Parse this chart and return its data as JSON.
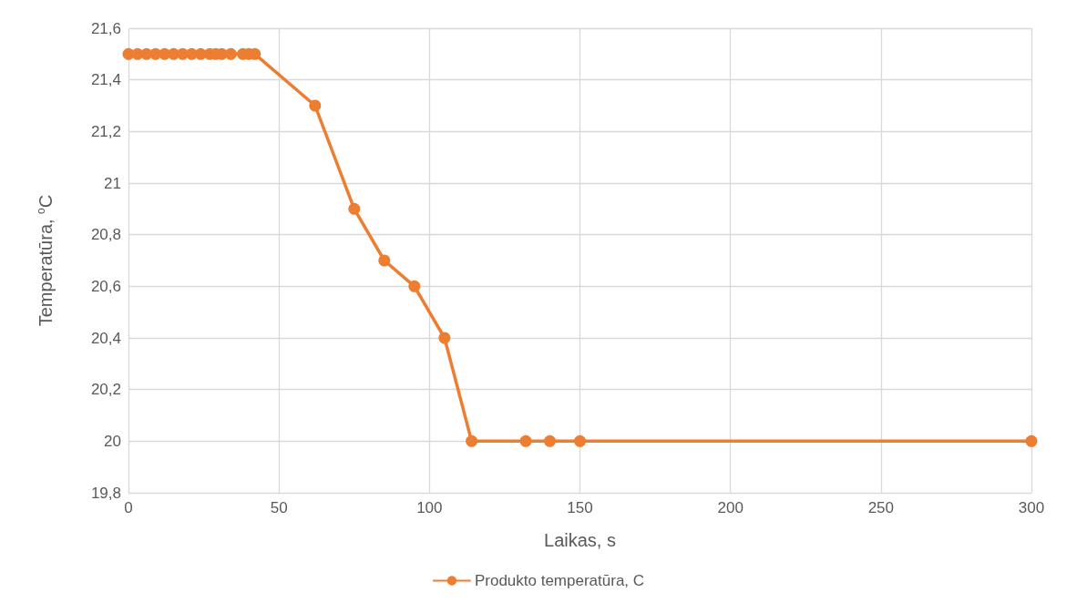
{
  "chart_data": {
    "type": "line",
    "xlabel": "Laikas, s",
    "ylabel": "Temperatūra, $^{o}$C",
    "series": [
      {
        "name": "Produkto temperatūra, C",
        "color": "#ed7d31",
        "x": [
          0,
          3,
          6,
          9,
          12,
          15,
          18,
          21,
          24,
          27,
          29,
          31,
          34,
          38,
          40,
          42,
          62,
          75,
          85,
          95,
          105,
          114,
          132,
          140,
          150,
          300
        ],
        "values": [
          21.5,
          21.5,
          21.5,
          21.5,
          21.5,
          21.5,
          21.5,
          21.5,
          21.5,
          21.5,
          21.5,
          21.5,
          21.5,
          21.5,
          21.5,
          21.5,
          21.3,
          20.9,
          20.7,
          20.6,
          20.4,
          20,
          20,
          20,
          20,
          20
        ]
      }
    ],
    "xlim": [
      0,
      300
    ],
    "xticks": [
      0,
      50,
      100,
      150,
      200,
      250,
      300
    ],
    "ylim": [
      19.8,
      21.6
    ],
    "yticks": [
      {
        "value": 19.8,
        "label": "19,8"
      },
      {
        "value": 20,
        "label": "20"
      },
      {
        "value": 20.2,
        "label": "20,2"
      },
      {
        "value": 20.4,
        "label": "20,4"
      },
      {
        "value": 20.6,
        "label": "20,6"
      },
      {
        "value": 20.8,
        "label": "20,8"
      },
      {
        "value": 21,
        "label": "21"
      },
      {
        "value": 21.2,
        "label": "21,2"
      },
      {
        "value": 21.4,
        "label": "21,4"
      },
      {
        "value": 21.6,
        "label": "21,6"
      }
    ],
    "grid": true,
    "legend": "bottom",
    "marker": "circle",
    "line_style": "solid"
  }
}
